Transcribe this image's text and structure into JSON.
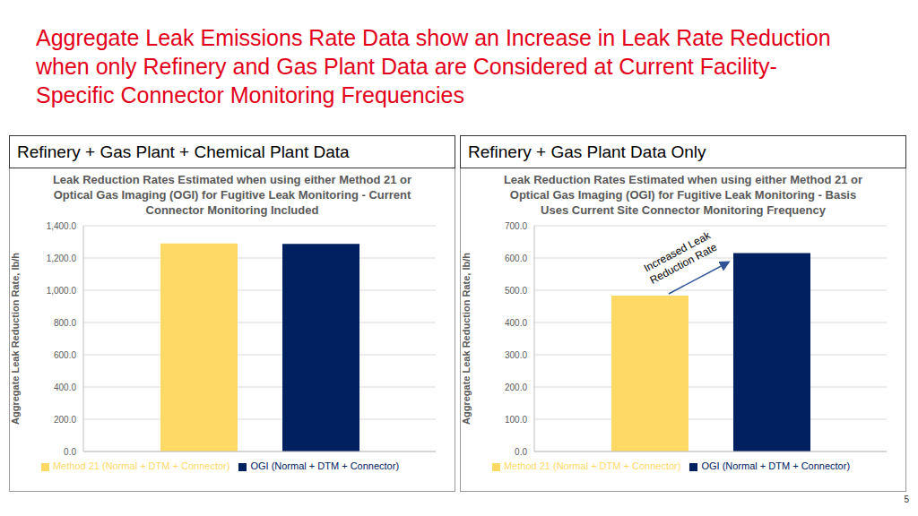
{
  "title": "Aggregate Leak Emissions Rate Data show an Increase in Leak Rate Reduction when only Refinery and Gas Plant Data are Considered at Current Facility-Specific Connector Monitoring Frequencies",
  "page_number": 5,
  "chart_data": [
    {
      "type": "bar",
      "panel_title": "Refinery + Gas Plant + Chemical Plant Data",
      "title": "Leak Reduction Rates Estimated when using either Method 21 or Optical Gas Imaging (OGI) for Fugitive Leak Monitoring - Current Connector Monitoring Included",
      "y_label": "Aggregate Leak Reduction Rate, lb/h",
      "categories": [
        null
      ],
      "series": [
        {
          "name": "Method 21 (Normal + DTM + Connector)",
          "color": "#FFD966",
          "values": [
            1290
          ]
        },
        {
          "name": "OGI (Normal + DTM + Connector)",
          "color": "#002060",
          "values": [
            1288
          ]
        }
      ],
      "ylim": [
        0,
        1400
      ],
      "yticks": [
        {
          "value": 0,
          "label": "0.0"
        },
        {
          "value": 200,
          "label": "200.0"
        },
        {
          "value": 400,
          "label": "400.0"
        },
        {
          "value": 600,
          "label": "600.0"
        },
        {
          "value": 800,
          "label": "800.0"
        },
        {
          "value": 1000,
          "label": "1,000.0"
        },
        {
          "value": 1200,
          "label": "1,200.0"
        },
        {
          "value": 1400,
          "label": "1,400.0"
        }
      ],
      "grid": true,
      "legend": "bottom",
      "tick_labels": "y"
    },
    {
      "type": "bar",
      "panel_title": "Refinery + Gas Plant Data Only",
      "title": "Leak Reduction Rates Estimated when using either Method 21 or Optical Gas Imaging (OGI) for Fugitive Leak Monitoring - Basis Uses Current Site Connector Monitoring Frequency",
      "y_label": "Aggregate Leak Reduction Rate, lb/h",
      "categories": [
        null
      ],
      "series": [
        {
          "name": "Method 21 (Normal + DTM + Connector)",
          "color": "#FFD966",
          "values": [
            483
          ]
        },
        {
          "name": "OGI (Normal + DTM + Connector)",
          "color": "#002060",
          "values": [
            615
          ]
        }
      ],
      "ylim": [
        0,
        700
      ],
      "yticks": [
        {
          "value": 0,
          "label": "0.0"
        },
        {
          "value": 100,
          "label": "100.0"
        },
        {
          "value": 200,
          "label": "200.0"
        },
        {
          "value": 300,
          "label": "300.0"
        },
        {
          "value": 400,
          "label": "400.0"
        },
        {
          "value": 500,
          "label": "500.0"
        },
        {
          "value": 600,
          "label": "600.0"
        },
        {
          "value": 700,
          "label": "700.0"
        }
      ],
      "grid": true,
      "legend": "bottom",
      "tick_labels": "y",
      "annotations": [
        "Increased Leak Reduction Rate"
      ]
    }
  ]
}
